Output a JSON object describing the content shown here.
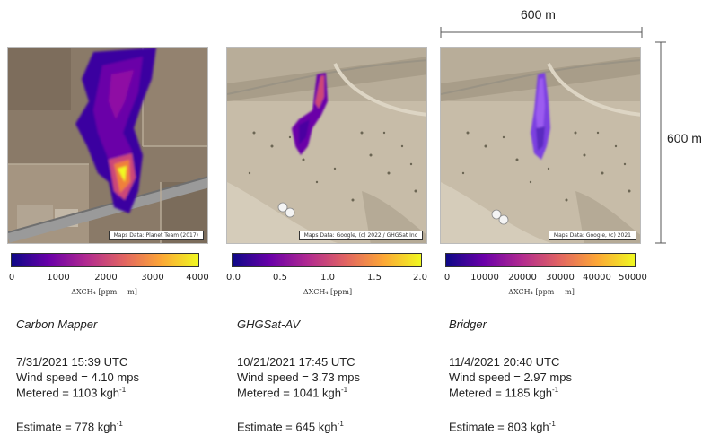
{
  "panels": [
    {
      "name": "Carbon Mapper",
      "credit": "Maps Data: Planet Team (2017)",
      "ticks": [
        "0",
        "1000",
        "2000",
        "3000",
        "4000"
      ],
      "colorbar_label": "ΔXCH₄ [ppm − m]",
      "datetime": "7/31/2021 15:39 UTC",
      "wind": "Wind speed = 4.10 mps",
      "metered": "Metered = 1103 kgh",
      "estimate": "Estimate = 778 kgh",
      "unit_sup": "-1"
    },
    {
      "name": "GHGSat-AV",
      "credit": "Maps Data: Google, (c) 2022 / GHGSat Inc",
      "ticks": [
        "0.0",
        "0.5",
        "1.0",
        "1.5",
        "2.0"
      ],
      "colorbar_label": "ΔXCH₄ [ppm]",
      "datetime": "10/21/2021 17:45 UTC",
      "wind": "Wind speed = 3.73 mps",
      "metered": "Metered = 1041 kgh",
      "estimate": "Estimate = 645 kgh",
      "unit_sup": "-1"
    },
    {
      "name": "Bridger",
      "credit": "Maps Data: Google, (c) 2021",
      "ticks": [
        "0",
        "10000",
        "20000",
        "30000",
        "40000",
        "50000"
      ],
      "colorbar_label": "ΔXCH₄ [ppm − m]",
      "datetime": "11/4/2021 20:40 UTC",
      "wind": "Wind speed = 2.97 mps",
      "metered": "Metered = 1185 kgh",
      "estimate": "Estimate = 803 kgh",
      "unit_sup": "-1"
    }
  ],
  "scale": {
    "horizontal": "600 m",
    "vertical": "600 m"
  },
  "colors": {
    "plasma_start": "#0d0887",
    "plasma_mid": "#cc4778",
    "plasma_end": "#f0f921"
  }
}
